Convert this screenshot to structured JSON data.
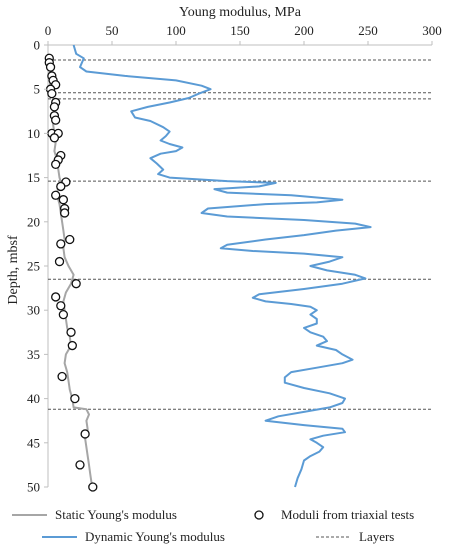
{
  "chart_data": {
    "type": "line",
    "xlabel": "Young modulus, MPa",
    "ylabel": "Depth, mbsf",
    "xlim": [
      0,
      300
    ],
    "ylim": [
      0,
      50
    ],
    "x_ticks": [
      0,
      50,
      100,
      150,
      200,
      250,
      300
    ],
    "y_ticks": [
      0,
      5,
      10,
      15,
      20,
      25,
      30,
      35,
      40,
      45,
      50
    ],
    "x_axis_position": "top",
    "y_axis_inverted": true,
    "grid": false,
    "legend_position": "bottom",
    "series": [
      {
        "name": "Static Young's modulus",
        "kind": "line",
        "color": "#a6a6a6",
        "points": [
          [
            0,
            1
          ],
          [
            1,
            2
          ],
          [
            2,
            3
          ],
          [
            2,
            4
          ],
          [
            1,
            5
          ],
          [
            3,
            5.5
          ],
          [
            4,
            6
          ],
          [
            5,
            6.5
          ],
          [
            4,
            7
          ],
          [
            5,
            8
          ],
          [
            4,
            9
          ],
          [
            5,
            10
          ],
          [
            6,
            11
          ],
          [
            5,
            12
          ],
          [
            7,
            13
          ],
          [
            8,
            14
          ],
          [
            9,
            15
          ],
          [
            10,
            15.5
          ],
          [
            8,
            16
          ],
          [
            7,
            17
          ],
          [
            9,
            18
          ],
          [
            10,
            19
          ],
          [
            11,
            20
          ],
          [
            12,
            21
          ],
          [
            13,
            22
          ],
          [
            12,
            23
          ],
          [
            13,
            24
          ],
          [
            16,
            25
          ],
          [
            20,
            26
          ],
          [
            18,
            27
          ],
          [
            14,
            28
          ],
          [
            12,
            29
          ],
          [
            13,
            30
          ],
          [
            14,
            31
          ],
          [
            15,
            32
          ],
          [
            17,
            33
          ],
          [
            18,
            34
          ],
          [
            14,
            35
          ],
          [
            13,
            36
          ],
          [
            15,
            37
          ],
          [
            16,
            38
          ],
          [
            17,
            39
          ],
          [
            19,
            40
          ],
          [
            20,
            41
          ],
          [
            30,
            41.2
          ],
          [
            32,
            41.8
          ],
          [
            30,
            42.5
          ],
          [
            31,
            43.5
          ],
          [
            29,
            44.5
          ],
          [
            30,
            45.5
          ],
          [
            31,
            46.5
          ],
          [
            32,
            47.5
          ],
          [
            33,
            48.5
          ],
          [
            34,
            49.5
          ],
          [
            35,
            50
          ]
        ]
      },
      {
        "name": "Dynamic Young's modulus",
        "kind": "line",
        "color": "#5b9bd5",
        "points": [
          [
            20,
            0
          ],
          [
            22,
            1
          ],
          [
            28,
            1.5
          ],
          [
            25,
            2.5
          ],
          [
            30,
            3
          ],
          [
            60,
            3.5
          ],
          [
            100,
            4
          ],
          [
            120,
            4.6
          ],
          [
            127,
            5
          ],
          [
            118,
            5.5
          ],
          [
            110,
            6
          ],
          [
            95,
            6.5
          ],
          [
            78,
            7
          ],
          [
            65,
            7.5
          ],
          [
            68,
            8.2
          ],
          [
            80,
            8.6
          ],
          [
            90,
            9.3
          ],
          [
            95,
            9.8
          ],
          [
            92,
            10.3
          ],
          [
            88,
            10.8
          ],
          [
            95,
            11.2
          ],
          [
            105,
            11.6
          ],
          [
            100,
            12
          ],
          [
            88,
            12.3
          ],
          [
            80,
            12.8
          ],
          [
            85,
            13.4
          ],
          [
            90,
            14.1
          ],
          [
            86,
            14.6
          ],
          [
            95,
            15
          ],
          [
            140,
            15.4
          ],
          [
            178,
            15.6
          ],
          [
            165,
            16
          ],
          [
            130,
            16.3
          ],
          [
            140,
            16.7
          ],
          [
            190,
            17
          ],
          [
            230,
            17.5
          ],
          [
            210,
            17.8
          ],
          [
            170,
            18
          ],
          [
            125,
            18.5
          ],
          [
            120,
            19
          ],
          [
            140,
            19.4
          ],
          [
            200,
            19.8
          ],
          [
            240,
            20.2
          ],
          [
            252,
            20.6
          ],
          [
            225,
            21
          ],
          [
            200,
            21.5
          ],
          [
            170,
            22
          ],
          [
            140,
            22.6
          ],
          [
            135,
            23
          ],
          [
            160,
            23.3
          ],
          [
            200,
            23.6
          ],
          [
            230,
            24
          ],
          [
            220,
            24.5
          ],
          [
            205,
            25
          ],
          [
            218,
            25.5
          ],
          [
            240,
            26
          ],
          [
            248,
            26.4
          ],
          [
            230,
            27
          ],
          [
            200,
            27.6
          ],
          [
            165,
            28.2
          ],
          [
            160,
            28.6
          ],
          [
            170,
            29
          ],
          [
            190,
            29.3
          ],
          [
            205,
            29.6
          ],
          [
            210,
            30
          ],
          [
            205,
            30.5
          ],
          [
            210,
            31
          ],
          [
            210,
            31.5
          ],
          [
            200,
            32
          ],
          [
            205,
            32.5
          ],
          [
            215,
            33
          ],
          [
            218,
            33.5
          ],
          [
            210,
            34
          ],
          [
            225,
            34.5
          ],
          [
            230,
            35
          ],
          [
            238,
            35.6
          ],
          [
            230,
            36
          ],
          [
            210,
            36.5
          ],
          [
            190,
            37
          ],
          [
            185,
            37.6
          ],
          [
            185,
            38.2
          ],
          [
            200,
            38.8
          ],
          [
            220,
            39.4
          ],
          [
            232,
            40
          ],
          [
            230,
            40.5
          ],
          [
            220,
            41
          ],
          [
            200,
            41.5
          ],
          [
            180,
            42
          ],
          [
            170,
            42.5
          ],
          [
            200,
            43
          ],
          [
            230,
            43.4
          ],
          [
            232,
            43.8
          ],
          [
            215,
            44.2
          ],
          [
            205,
            44.6
          ],
          [
            210,
            45
          ],
          [
            215,
            45.5
          ],
          [
            212,
            46
          ],
          [
            205,
            46.5
          ],
          [
            200,
            47
          ],
          [
            198,
            48
          ],
          [
            195,
            49
          ],
          [
            193,
            50
          ]
        ]
      },
      {
        "name": "Moduli from triaxial tests",
        "kind": "scatter",
        "points": [
          [
            1,
            1.5
          ],
          [
            1,
            2
          ],
          [
            2,
            2.5
          ],
          [
            3,
            3.5
          ],
          [
            4,
            4
          ],
          [
            6,
            4.5
          ],
          [
            2,
            5
          ],
          [
            3,
            5.5
          ],
          [
            6,
            6.5
          ],
          [
            5,
            7
          ],
          [
            5,
            8
          ],
          [
            6,
            8.5
          ],
          [
            3,
            10
          ],
          [
            8,
            10
          ],
          [
            5,
            10.5
          ],
          [
            10,
            12.5
          ],
          [
            8,
            13
          ],
          [
            6,
            13.5
          ],
          [
            14,
            15.5
          ],
          [
            10,
            16
          ],
          [
            6,
            17
          ],
          [
            12,
            17.5
          ],
          [
            13,
            18.5
          ],
          [
            13,
            19
          ],
          [
            10,
            22.5
          ],
          [
            17,
            22
          ],
          [
            9,
            24.5
          ],
          [
            22,
            27
          ],
          [
            6,
            28.5
          ],
          [
            10,
            29.5
          ],
          [
            12,
            30.5
          ],
          [
            18,
            32.5
          ],
          [
            19,
            34
          ],
          [
            11,
            37.5
          ],
          [
            21,
            40
          ],
          [
            29,
            44
          ],
          [
            25,
            47.5
          ],
          [
            35,
            50
          ]
        ]
      },
      {
        "name": "Layers",
        "kind": "hlines",
        "color": "#555555",
        "values": [
          1.7,
          5.4,
          6.1,
          15.4,
          26.5,
          41.2
        ]
      }
    ]
  }
}
